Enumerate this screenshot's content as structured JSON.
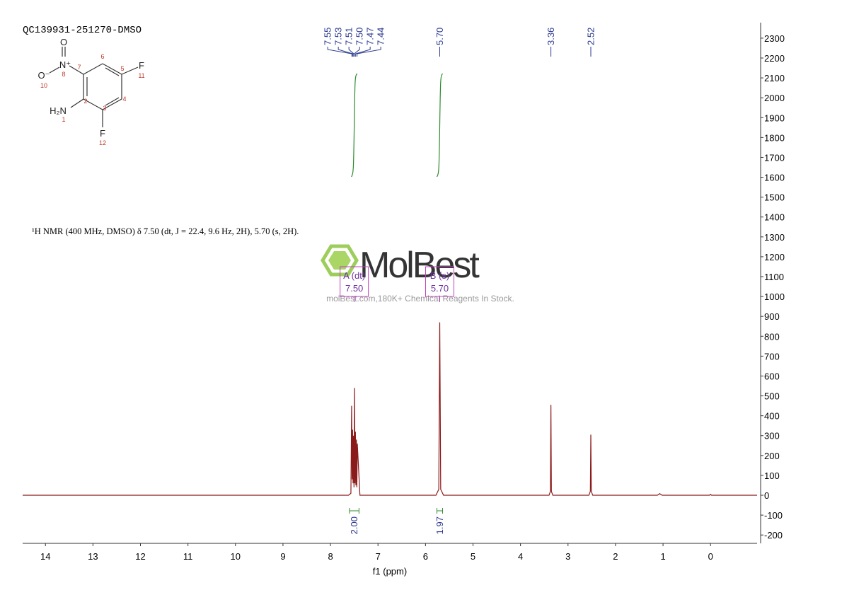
{
  "chart_data": {
    "type": "line",
    "title": "QC139931-251270-DMSO",
    "annotation": "¹H NMR (400 MHz, DMSO) δ 7.50 (dt, J = 22.4, 9.6 Hz, 2H), 5.70 (s, 2H).",
    "watermark": {
      "brand": "MolBest",
      "text": "molBest.com,180K+ Chemical Reagents In Stock."
    },
    "x_label": "f1 (ppm)",
    "xlim": [
      14.48,
      -0.98
    ],
    "xticks": [
      14,
      13,
      12,
      11,
      10,
      9,
      8,
      7,
      6,
      5,
      4,
      3,
      2,
      1,
      0
    ],
    "ylim": [
      -242,
      2378
    ],
    "yticks": [
      -200,
      -100,
      0,
      100,
      200,
      300,
      400,
      500,
      600,
      700,
      800,
      900,
      1000,
      1100,
      1200,
      1300,
      1400,
      1500,
      1600,
      1700,
      1800,
      1900,
      2000,
      2100,
      2200,
      2300
    ],
    "x": [
      14.48,
      7.62,
      7.57,
      7.555,
      7.545,
      7.535,
      7.525,
      7.515,
      7.505,
      7.495,
      7.485,
      7.475,
      7.465,
      7.455,
      7.445,
      7.435,
      7.38,
      5.78,
      5.72,
      5.7,
      5.68,
      5.62,
      3.4,
      3.37,
      3.36,
      3.35,
      3.32,
      2.56,
      2.53,
      2.52,
      2.51,
      2.48,
      1.12,
      1.07,
      1.02,
      0.02,
      0.0,
      -0.02,
      -0.98
    ],
    "series": [
      {
        "color": "#8b1a1a",
        "values": [
          0,
          0,
          10,
          450,
          80,
          330,
          60,
          300,
          40,
          540,
          60,
          320,
          50,
          280,
          40,
          260,
          0,
          0,
          30,
          870,
          30,
          0,
          0,
          20,
          455,
          20,
          0,
          0,
          20,
          305,
          20,
          0,
          0,
          8,
          0,
          0,
          5,
          0,
          0
        ]
      }
    ],
    "peak_labels": [
      7.55,
      7.53,
      7.51,
      {
        "value": 7.5,
        "label": "7.50"
      },
      7.47,
      7.44,
      {
        "value": 5.7,
        "label": "5.70"
      },
      3.36,
      2.52
    ],
    "integrals": [
      {
        "range": [
          7.6,
          7.4
        ],
        "value": {
          "value": 2,
          "label": "2.00"
        }
      },
      {
        "range": [
          5.76,
          5.64
        ],
        "value": {
          "value": 1.97,
          "label": "1.97"
        }
      }
    ],
    "multiplets": [
      {
        "name": "A (dt)",
        "shift": {
          "value": 7.5,
          "label": "7.50"
        }
      },
      {
        "name": "B (s)",
        "shift": {
          "value": 5.7,
          "label": "5.70"
        }
      }
    ],
    "structure": {
      "atoms": [
        "O",
        "N⁺",
        "O⁻",
        "F",
        "H₂N",
        "F"
      ],
      "numbers": [
        8,
        10,
        11,
        1,
        12,
        7,
        6,
        5,
        2,
        3,
        4
      ]
    }
  }
}
